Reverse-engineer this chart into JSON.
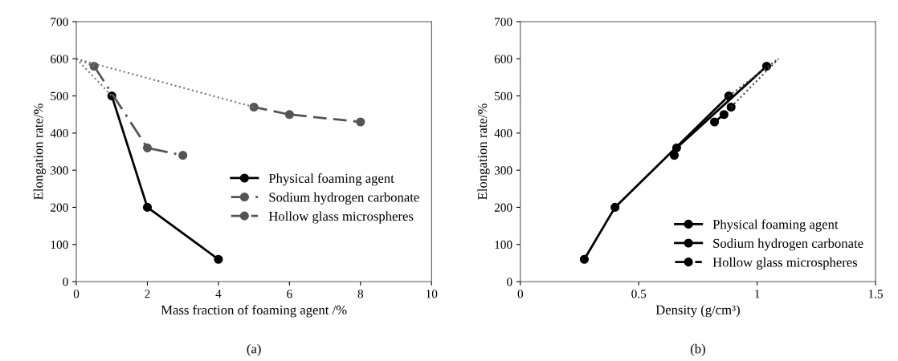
{
  "chart_data": [
    {
      "type": "line",
      "xlabel": "Mass fraction of foaming agent /%",
      "ylabel": "Elongation rate/%",
      "annotations": [
        "(a)"
      ],
      "xlim": [
        0,
        10
      ],
      "xticks": [
        0,
        2,
        4,
        6,
        8,
        10
      ],
      "ylim": [
        0,
        700
      ],
      "yticks": [
        0,
        100,
        200,
        300,
        400,
        500,
        600,
        700
      ],
      "grid": false,
      "legend": "right",
      "marker": "circle",
      "series": [
        {
          "name": "Physical foaming agent",
          "color": "#000000",
          "x": [
            1,
            2,
            4
          ],
          "values": [
            500,
            200,
            60
          ],
          "line_style": "solid"
        },
        {
          "name": "Sodium hydrogen carbonate",
          "color": "#555555",
          "x": [
            0.5,
            2,
            3
          ],
          "values": [
            580,
            360,
            340
          ],
          "line_style": "dashdot"
        },
        {
          "name": "Hollow glass microspheres",
          "color": "#555555",
          "x": [
            5,
            6,
            8
          ],
          "values": [
            470,
            450,
            430
          ],
          "line_style": "dashed"
        },
        {
          "color": "#777777",
          "x": [
            0,
            1
          ],
          "values": [
            600,
            500
          ],
          "line_style": "dotted",
          "marker": "none"
        },
        {
          "color": "#777777",
          "x": [
            0,
            0.5
          ],
          "values": [
            600,
            580
          ],
          "line_style": "dotted",
          "marker": "none"
        },
        {
          "color": "#777777",
          "x": [
            0,
            5
          ],
          "values": [
            600,
            470
          ],
          "line_style": "dotted",
          "marker": "none"
        }
      ]
    },
    {
      "type": "line",
      "xlabel": "Density (g/cm³)",
      "ylabel": "Elongation rate/%",
      "annotations": [
        "(b)"
      ],
      "xlim": [
        0,
        1.5
      ],
      "xticks": [
        0,
        0.5,
        1,
        1.5
      ],
      "ylim": [
        0,
        700
      ],
      "yticks": [
        0,
        100,
        200,
        300,
        400,
        500,
        600,
        700
      ],
      "grid": false,
      "legend": "lower right",
      "marker": "circle",
      "series": [
        {
          "name": "Physical foaming agent",
          "color": "#000000",
          "x": [
            0.27,
            0.4,
            0.88
          ],
          "values": [
            60,
            200,
            500
          ],
          "line_style": "solid"
        },
        {
          "name": "Sodium hydrogen carbonate",
          "color": "#000000",
          "x": [
            1.04,
            0.66,
            0.65
          ],
          "values": [
            580,
            360,
            340
          ],
          "line_style": "solid"
        },
        {
          "name": "Hollow glass microspheres",
          "color": "#000000",
          "x": [
            0.82,
            0.86,
            0.89
          ],
          "values": [
            430,
            450,
            470
          ],
          "line_style": "dashed"
        },
        {
          "color": "#444444",
          "x": [
            0.88,
            1.09
          ],
          "values": [
            500,
            600
          ],
          "line_style": "dotted",
          "marker": "none"
        },
        {
          "color": "#444444",
          "x": [
            0.89,
            1.09
          ],
          "values": [
            470,
            600
          ],
          "line_style": "dotted",
          "marker": "none"
        }
      ]
    }
  ]
}
